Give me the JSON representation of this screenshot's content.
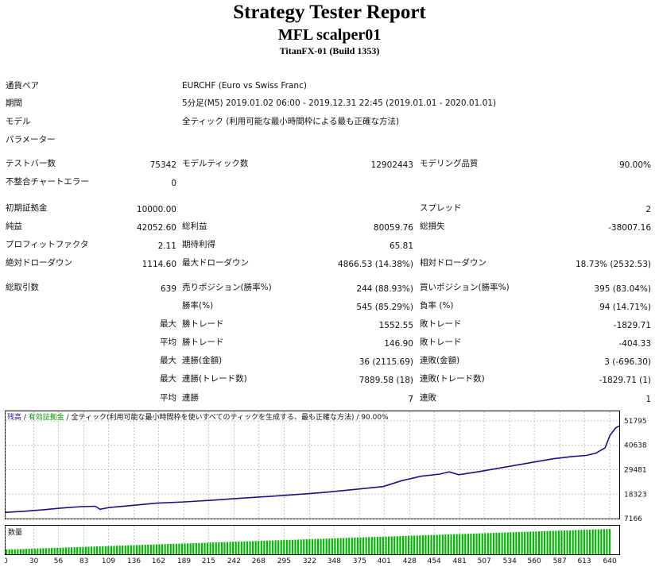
{
  "header": {
    "title": "Strategy Tester Report",
    "subtitle": "MFL scalper01",
    "build": "TitanFX-01 (Build 1353)"
  },
  "info": {
    "symbol_label": "通貨ペア",
    "symbol_value": "EURCHF (Euro vs Swiss Franc)",
    "period_label": "期間",
    "period_value": "5分足(M5) 2019.01.02 06:00 - 2019.12.31 22:45 (2019.01.01 - 2020.01.01)",
    "model_label": "モデル",
    "model_value": "全ティック (利用可能な最小時間枠による最も正確な方法)",
    "params_label": "パラメーター"
  },
  "stats": {
    "bars_label": "テストバー数",
    "bars_value": "75342",
    "ticks_label": "モデルティック数",
    "ticks_value": "12902443",
    "quality_label": "モデリング品質",
    "quality_value": "90.00%",
    "errors_label": "不整合チャートエラー",
    "errors_value": "0",
    "deposit_label": "初期証拠金",
    "deposit_value": "10000.00",
    "spread_label": "スプレッド",
    "spread_value": "2",
    "net_label": "純益",
    "net_value": "42052.60",
    "gross_profit_label": "総利益",
    "gross_profit_value": "80059.76",
    "gross_loss_label": "総損失",
    "gross_loss_value": "-38007.16",
    "pf_label": "プロフィットファクタ",
    "pf_value": "2.11",
    "expected_label": "期待利得",
    "expected_value": "65.81",
    "abs_dd_label": "絶対ドローダウン",
    "abs_dd_value": "1114.60",
    "max_dd_label": "最大ドローダウン",
    "max_dd_value": "4866.53 (14.38%)",
    "rel_dd_label": "相対ドローダウン",
    "rel_dd_value": "18.73% (2532.53)",
    "total_label": "総取引数",
    "total_value": "639",
    "short_label": "売りポジション(勝率%)",
    "short_value": "244 (88.93%)",
    "long_label": "買いポジション(勝率%)",
    "long_value": "395 (83.04%)",
    "win_label": "勝率(%)",
    "win_value": "545 (85.29%)",
    "loss_label": "負率 (%)",
    "loss_value": "94 (14.71%)",
    "max_word": "最大",
    "avg_word": "平均",
    "largest_win_label": "勝トレード",
    "largest_win_value": "1552.55",
    "largest_loss_label": "敗トレード",
    "largest_loss_value": "-1829.71",
    "avg_win_label": "勝トレード",
    "avg_win_value": "146.90",
    "avg_loss_label": "敗トレード",
    "avg_loss_value": "-404.33",
    "cons_wins_label": "連勝(金額)",
    "cons_wins_value": "36 (2115.69)",
    "cons_losses_label": "連敗(金額)",
    "cons_losses_value": "3 (-696.30)",
    "cons_profit_label": "連勝(トレード数)",
    "cons_profit_value": "7889.58 (18)",
    "cons_loss_label": "連敗(トレード数)",
    "cons_loss_value": "-1829.71 (1)",
    "avg_cons_wins_label": "連勝",
    "avg_cons_wins_value": "7",
    "avg_cons_losses_label": "連敗",
    "avg_cons_losses_value": "1"
  },
  "chart_data": {
    "type": "line",
    "legend": {
      "balance": "残高",
      "sep1": " / ",
      "equity": "有効証拠金",
      "sep2": " / ",
      "model": "全ティック(利用可能な最小時間枠を使いすべてのティックを生成する、最も正確な方法)",
      "sep3": " / ",
      "quality": "90.00%"
    },
    "volume_label": "数量",
    "y_ticks": [
      51795,
      40638,
      29481,
      18323,
      7166
    ],
    "x_ticks": [
      0,
      30,
      56,
      83,
      109,
      136,
      162,
      189,
      215,
      242,
      268,
      295,
      322,
      348,
      375,
      401,
      428,
      454,
      481,
      507,
      534,
      560,
      587,
      613,
      640
    ],
    "ylim": [
      7166,
      51795
    ],
    "xlim": [
      0,
      650
    ],
    "x": [
      0,
      20,
      40,
      60,
      80,
      95,
      100,
      110,
      130,
      160,
      190,
      220,
      250,
      280,
      310,
      340,
      370,
      400,
      420,
      440,
      460,
      470,
      480,
      500,
      520,
      540,
      560,
      580,
      600,
      615,
      625,
      635,
      640,
      646,
      650
    ],
    "y": [
      10000,
      10500,
      11200,
      12000,
      12600,
      12800,
      11400,
      12200,
      13000,
      14200,
      14800,
      15600,
      16500,
      17300,
      18200,
      19200,
      20500,
      21800,
      24500,
      26500,
      27500,
      28500,
      27200,
      28500,
      30000,
      31500,
      33000,
      34500,
      35500,
      36000,
      37000,
      39500,
      45000,
      48500,
      49500
    ],
    "colors": {
      "balance": "#2a0a8c",
      "equity": "#009900",
      "volume": "#00b800",
      "grid": "#c4c4c4"
    }
  }
}
